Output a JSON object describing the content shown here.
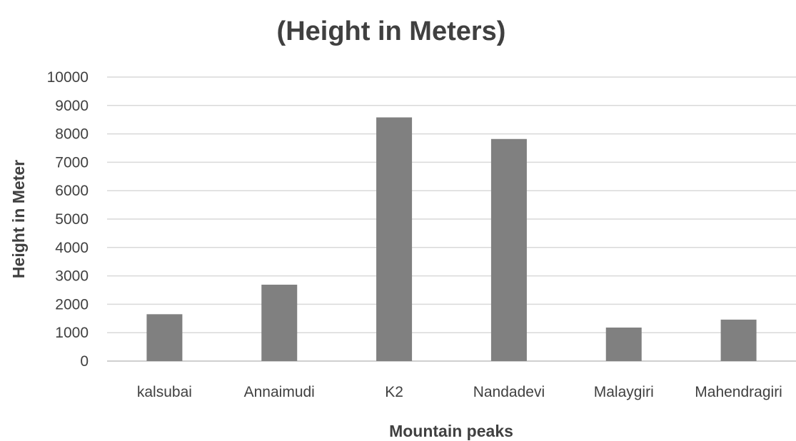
{
  "chart_data": {
    "type": "bar",
    "title": "(Height in Meters)",
    "xlabel": "Mountain peaks",
    "ylabel": "Height in Meter",
    "categories": [
      "kalsubai",
      "Annaimudi",
      "K2",
      "Nandadevi",
      "Malaygiri",
      "Mahendragiri"
    ],
    "values": [
      1650,
      2690,
      8580,
      7820,
      1180,
      1460
    ],
    "ylim": [
      0,
      10000
    ],
    "yticks": [
      "0",
      "1000",
      "2000",
      "3000",
      "4000",
      "5000",
      "6000",
      "7000",
      "8000",
      "9000",
      "10000"
    ],
    "grid": true,
    "legend": "none",
    "bar_color": "#808080"
  }
}
